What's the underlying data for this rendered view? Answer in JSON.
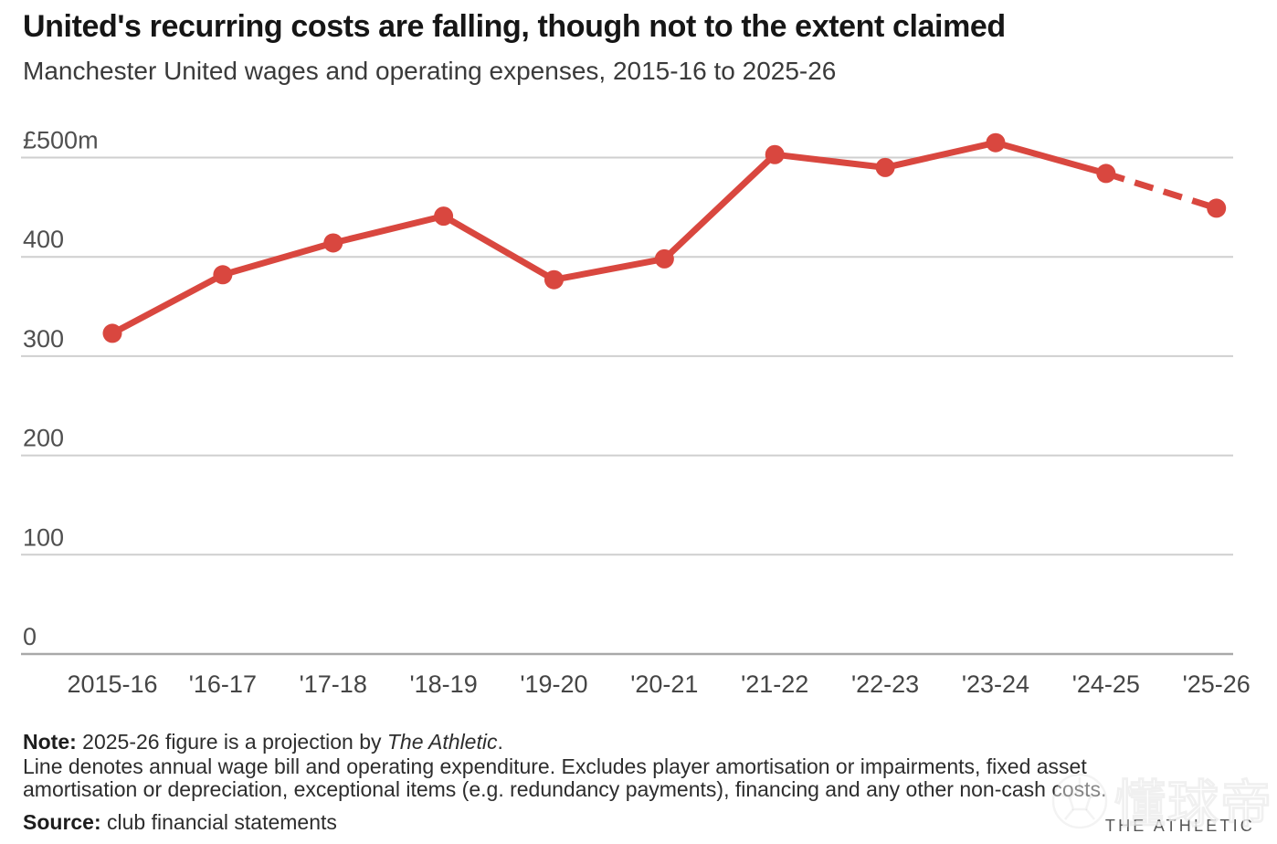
{
  "header": {
    "title": "United's recurring costs are falling, though not to the extent claimed",
    "subtitle": "Manchester United wages and operating expenses, 2015-16 to 2025-26"
  },
  "chart_data": {
    "type": "line",
    "title": "United's recurring costs are falling, though not to the extent claimed",
    "subtitle": "Manchester United wages and operating expenses, 2015-16 to 2025-26",
    "categories": [
      "2015-16",
      "'16-17",
      "'17-18",
      "'18-19",
      "'19-20",
      "'20-21",
      "'21-22",
      "'22-23",
      "'23-24",
      "'24-25",
      "'25-26"
    ],
    "series": [
      {
        "name": "Annual wage bill and operating expenditure (£m)",
        "values": [
          323,
          382,
          414,
          441,
          377,
          398,
          503,
          490,
          515,
          484,
          449
        ],
        "color": "#d9473f"
      }
    ],
    "dashed_segment": {
      "from": "'24-25",
      "to": "'25-26",
      "meaning": "2025-26 figure is a projection"
    },
    "ylim": [
      0,
      500
    ],
    "yticks": [
      0,
      100,
      200,
      300,
      400,
      500
    ],
    "ytick_labels": [
      "0",
      "100",
      "200",
      "300",
      "400",
      "£500m"
    ],
    "xlabel": "",
    "ylabel": "£m",
    "grid": true,
    "legend": "none"
  },
  "footer": {
    "note_label": "Note:",
    "note_text": " 2025-26 figure is a projection by ",
    "note_italic": "The Athletic",
    "note_period": ".",
    "note_line2": "Line denotes annual wage bill and operating expenditure. Excludes player amortisation or impairments, fixed asset",
    "note_line3": "amortisation or depreciation, exceptional items (e.g. redundancy payments), financing and any other non-cash costs.",
    "source_label": "Source:",
    "source_text": " club financial statements",
    "brand": "THE ATHLETIC"
  },
  "watermark": {
    "text": "懂球帝"
  }
}
